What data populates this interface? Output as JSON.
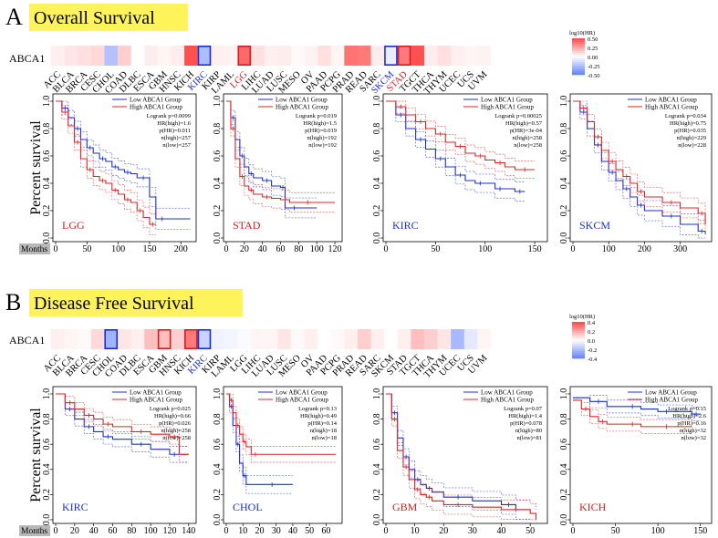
{
  "figure": {
    "panels": [
      {
        "letter": "A",
        "title": "Overall Survival",
        "gene": "ABCA1",
        "cancers": [
          "ACC",
          "BLCA",
          "BRCA",
          "CESC",
          "CHOL",
          "COAD",
          "DLBC",
          "ESCA",
          "GBM",
          "HNSC",
          "KICH",
          "KIRC",
          "KIRP",
          "LAML",
          "LGG",
          "LIHC",
          "LUAD",
          "LUSC",
          "MESO",
          "OV",
          "PAAD",
          "PCPG",
          "PRAD",
          "READ",
          "SARC",
          "SKCM",
          "STAD",
          "TGCT",
          "THCA",
          "THYM",
          "UCEC",
          "UCS",
          "UVM"
        ],
        "heat_values": [
          0.05,
          0.08,
          0.1,
          0.12,
          -0.28,
          0.15,
          0,
          0.06,
          0.03,
          0.06,
          0.55,
          -0.3,
          0.05,
          0.04,
          0.47,
          0.1,
          0.05,
          0.06,
          0.02,
          0.04,
          0.1,
          0.03,
          0.44,
          0.42,
          0.06,
          -0.08,
          0.42,
          0.55,
          0.06,
          0.1,
          0.05,
          0.03,
          0.04
        ],
        "boxes": [
          {
            "index": 11,
            "color": "#1b2fd6"
          },
          {
            "index": 14,
            "color": "#d02020"
          },
          {
            "index": 25,
            "color": "#1b2fd6"
          },
          {
            "index": 26,
            "color": "#d02020"
          }
        ],
        "colored_labels": [
          {
            "index": 11,
            "color": "#1b2fd6"
          },
          {
            "index": 14,
            "color": "#d02020"
          },
          {
            "index": 25,
            "color": "#1b2fd6"
          },
          {
            "index": 26,
            "color": "#d02020"
          }
        ],
        "colorbar": {
          "title": "log10(HR)",
          "ticks": [
            "0.50",
            "0.25",
            "0.00",
            "-0.25",
            "-0.50"
          ]
        },
        "ylabel": "Percent survival",
        "xaxis_label": "Months"
      },
      {
        "letter": "B",
        "title": "Disease Free Survival",
        "gene": "ABCA1",
        "cancers": [
          "ACC",
          "BLCA",
          "BRCA",
          "CESC",
          "CHOL",
          "COAD",
          "DLBC",
          "ESCA",
          "GBM",
          "HNSC",
          "KICH",
          "KIRC",
          "KIRP",
          "LAML",
          "LGG",
          "LIHC",
          "LUAD",
          "LUSC",
          "MESO",
          "OV",
          "PAAD",
          "PCPG",
          "PRAD",
          "READ",
          "SARC",
          "SKCM",
          "STAD",
          "TGCT",
          "THCA",
          "THYM",
          "UCEC",
          "UCS",
          "UVM"
        ],
        "heat_values": [
          0.05,
          0.03,
          0.02,
          0.12,
          -0.35,
          0.08,
          0.05,
          0.2,
          0.2,
          0.15,
          0.42,
          -0.2,
          -0.06,
          -0.04,
          -0.02,
          0.03,
          0.03,
          0.08,
          0.02,
          0.05,
          0.0,
          0.02,
          0.05,
          0.15,
          0.05,
          0.0,
          0.05,
          0.2,
          0.15,
          0.08,
          -0.32,
          -0.1,
          0.03
        ],
        "boxes": [
          {
            "index": 4,
            "color": "#1b2fd6"
          },
          {
            "index": 8,
            "color": "#d02020"
          },
          {
            "index": 10,
            "color": "#d02020"
          },
          {
            "index": 11,
            "color": "#1b2fd6"
          }
        ],
        "colored_labels": [
          {
            "index": 11,
            "color": "#1b2fd6"
          }
        ],
        "colorbar": {
          "title": "log10(HR)",
          "ticks": [
            "0.4",
            "0.2",
            "0.0",
            "-0.2",
            "-0.4"
          ]
        },
        "ylabel": "Percent survival",
        "xaxis_label": "Months"
      }
    ]
  },
  "chart_data": [
    {
      "type": "line",
      "panel": "A",
      "cancer": "LGG",
      "cancer_color": "#d02020",
      "xlim": [
        0,
        220
      ],
      "xticks": [
        0,
        50,
        100,
        150,
        200
      ],
      "ylim": [
        0,
        1
      ],
      "yticks": [
        "0.0",
        "0.2",
        "0.4",
        "0.6",
        "0.8",
        "1.0"
      ],
      "legend": [
        "Low ABCA1 Group",
        "High ABCA1 Group"
      ],
      "stats": [
        "Logrank p=0.0099",
        "HR(high)=1.6",
        "p(HR)=0.011",
        "n(high)=257",
        "n(low)=257"
      ],
      "series": [
        {
          "name": "Low ABCA1 Group",
          "x": [
            0,
            10,
            20,
            30,
            40,
            50,
            60,
            70,
            80,
            90,
            100,
            110,
            120,
            130,
            150,
            160,
            180,
            215
          ],
          "y": [
            1,
            0.95,
            0.88,
            0.8,
            0.72,
            0.66,
            0.62,
            0.58,
            0.56,
            0.52,
            0.5,
            0.48,
            0.47,
            0.44,
            0.3,
            0.14,
            0.14,
            0.14
          ]
        },
        {
          "name": "High ABCA1 Group",
          "x": [
            0,
            10,
            20,
            30,
            40,
            50,
            60,
            70,
            80,
            90,
            100,
            110,
            120,
            130,
            140,
            150,
            160
          ],
          "y": [
            1,
            0.92,
            0.82,
            0.7,
            0.58,
            0.5,
            0.45,
            0.42,
            0.4,
            0.35,
            0.32,
            0.28,
            0.26,
            0.2,
            0.15,
            0.1,
            0.1
          ]
        }
      ]
    },
    {
      "type": "line",
      "panel": "A",
      "cancer": "STAD",
      "cancer_color": "#d02020",
      "xlim": [
        0,
        125
      ],
      "xticks": [
        0,
        20,
        40,
        60,
        80,
        100,
        120
      ],
      "ylim": [
        0,
        1
      ],
      "yticks": [
        "0.0",
        "0.2",
        "0.4",
        "0.6",
        "0.8",
        "1.0"
      ],
      "legend": [
        "Low ABCA1 Group",
        "High ABCA1 Group"
      ],
      "stats": [
        "Logrank p=0.019",
        "HR(high)=1.5",
        "p(HR)=0.019",
        "n(high)=192",
        "n(low)=192"
      ],
      "series": [
        {
          "name": "Low ABCA1 Group",
          "x": [
            0,
            5,
            10,
            15,
            20,
            25,
            30,
            40,
            50,
            60,
            65,
            70,
            80,
            100
          ],
          "y": [
            1,
            0.88,
            0.72,
            0.6,
            0.52,
            0.47,
            0.44,
            0.42,
            0.38,
            0.37,
            0.22,
            0.22,
            0.22,
            0.22
          ]
        },
        {
          "name": "High ABCA1 Group",
          "x": [
            0,
            5,
            10,
            15,
            20,
            25,
            30,
            40,
            50,
            60,
            70,
            80,
            100,
            120
          ],
          "y": [
            1,
            0.8,
            0.58,
            0.45,
            0.38,
            0.35,
            0.32,
            0.3,
            0.29,
            0.28,
            0.26,
            0.26,
            0.26,
            0.26
          ]
        }
      ]
    },
    {
      "type": "line",
      "panel": "A",
      "cancer": "KIRC",
      "cancer_color": "#1b2fd6",
      "xlim": [
        0,
        160
      ],
      "xticks": [
        0,
        50,
        100,
        150
      ],
      "ylim": [
        0,
        1
      ],
      "yticks": [
        "0.0",
        "0.2",
        "0.4",
        "0.6",
        "0.8",
        "1.0"
      ],
      "legend": [
        "Low ABCA1 Group",
        "High ABCA1 Group"
      ],
      "stats": [
        "Logrank p=0.00025",
        "HR(high)=0.57",
        "p(HR)=3e-04",
        "n(high)=258",
        "n(low)=258"
      ],
      "series": [
        {
          "name": "Low ABCA1 Group",
          "x": [
            0,
            10,
            20,
            30,
            40,
            50,
            60,
            70,
            80,
            90,
            100,
            110,
            120,
            130,
            140
          ],
          "y": [
            1,
            0.9,
            0.8,
            0.72,
            0.65,
            0.58,
            0.52,
            0.46,
            0.42,
            0.4,
            0.4,
            0.36,
            0.36,
            0.34,
            0.34
          ]
        },
        {
          "name": "High ABCA1 Group",
          "x": [
            0,
            10,
            20,
            30,
            40,
            50,
            60,
            70,
            80,
            90,
            100,
            110,
            120,
            130,
            150
          ],
          "y": [
            1,
            0.96,
            0.9,
            0.85,
            0.8,
            0.76,
            0.7,
            0.67,
            0.62,
            0.6,
            0.57,
            0.55,
            0.52,
            0.5,
            0.5
          ]
        }
      ]
    },
    {
      "type": "line",
      "panel": "A",
      "cancer": "SKCM",
      "cancer_color": "#1b2fd6",
      "xlim": [
        0,
        380
      ],
      "xticks": [
        0,
        100,
        200,
        300
      ],
      "ylim": [
        0,
        1
      ],
      "yticks": [
        "0.0",
        "0.2",
        "0.4",
        "0.6",
        "0.8",
        "1.0"
      ],
      "legend": [
        "Low ABCA1 Group",
        "High ABCA1 Group"
      ],
      "stats": [
        "Logrank p=0.034",
        "HR(high)=0.75",
        "p(HR)=0.035",
        "n(high)=229",
        "n(low)=228"
      ],
      "series": [
        {
          "name": "Low ABCA1 Group",
          "x": [
            0,
            20,
            40,
            60,
            80,
            100,
            120,
            140,
            160,
            180,
            200,
            250,
            300,
            350,
            370
          ],
          "y": [
            1,
            0.92,
            0.8,
            0.68,
            0.56,
            0.48,
            0.42,
            0.36,
            0.3,
            0.24,
            0.2,
            0.16,
            0.1,
            0.05,
            0.03
          ]
        },
        {
          "name": "High ABCA1 Group",
          "x": [
            0,
            20,
            40,
            60,
            80,
            100,
            120,
            140,
            160,
            180,
            200,
            250,
            300,
            350,
            370
          ],
          "y": [
            1,
            0.95,
            0.85,
            0.74,
            0.64,
            0.56,
            0.5,
            0.45,
            0.4,
            0.34,
            0.3,
            0.26,
            0.22,
            0.18,
            0.1
          ]
        }
      ]
    },
    {
      "type": "line",
      "panel": "B",
      "cancer": "KIRC",
      "cancer_color": "#1b2fd6",
      "xlim": [
        0,
        145
      ],
      "xticks": [
        0,
        20,
        40,
        60,
        80,
        100,
        120,
        140
      ],
      "ylim": [
        0,
        1
      ],
      "yticks": [
        "0.0",
        "0.2",
        "0.4",
        "0.6",
        "0.8",
        "1.0"
      ],
      "legend": [
        "Low ABCA1 Group",
        "High ABCA1 Group"
      ],
      "stats": [
        "Logrank p=0.025",
        "HR(high)=0.66",
        "p(HR)=0.026",
        "n(high)=258",
        "n(low)=258"
      ],
      "series": [
        {
          "name": "Low ABCA1 Group",
          "x": [
            0,
            10,
            20,
            30,
            40,
            50,
            60,
            80,
            100,
            120,
            130,
            140
          ],
          "y": [
            1,
            0.88,
            0.8,
            0.74,
            0.7,
            0.66,
            0.64,
            0.6,
            0.56,
            0.52,
            0.52,
            0.52
          ]
        },
        {
          "name": "High ABCA1 Group",
          "x": [
            0,
            10,
            20,
            30,
            40,
            50,
            60,
            80,
            100,
            120,
            130,
            140
          ],
          "y": [
            1,
            0.93,
            0.88,
            0.83,
            0.8,
            0.76,
            0.74,
            0.7,
            0.68,
            0.66,
            0.52,
            0.52
          ]
        }
      ]
    },
    {
      "type": "line",
      "panel": "B",
      "cancer": "CHOL",
      "cancer_color": "#1b2fd6",
      "xlim": [
        0,
        68
      ],
      "xticks": [
        0,
        10,
        20,
        30,
        40,
        50,
        60
      ],
      "ylim": [
        0,
        1
      ],
      "yticks": [
        "0.0",
        "0.2",
        "0.4",
        "0.6",
        "0.8",
        "1.0"
      ],
      "legend": [
        "Low ABCA1 Group",
        "High ABCA1 Group"
      ],
      "stats": [
        "Logrank p=0.13",
        "HR(high)=0.49",
        "p(HR)=0.14",
        "n(high)=18",
        "n(low)=18"
      ],
      "series": [
        {
          "name": "Low ABCA1 Group",
          "x": [
            0,
            2,
            4,
            6,
            8,
            10,
            12,
            15,
            40
          ],
          "y": [
            1,
            0.9,
            0.75,
            0.6,
            0.45,
            0.35,
            0.28,
            0.28,
            0.28
          ]
        },
        {
          "name": "High ABCA1 Group",
          "x": [
            0,
            2,
            4,
            6,
            8,
            10,
            12,
            15,
            20,
            66
          ],
          "y": [
            1,
            0.95,
            0.85,
            0.75,
            0.68,
            0.62,
            0.58,
            0.52,
            0.52,
            0.52
          ]
        }
      ]
    },
    {
      "type": "line",
      "panel": "B",
      "cancer": "GBM",
      "cancer_color": "#d02020",
      "xlim": [
        0,
        55
      ],
      "xticks": [
        0,
        10,
        20,
        30,
        40,
        50
      ],
      "ylim": [
        0,
        1
      ],
      "yticks": [
        "0.0",
        "0.2",
        "0.4",
        "0.6",
        "0.8",
        "1.0"
      ],
      "legend": [
        "Low ABCA1 Group",
        "High ABCA1 Group"
      ],
      "stats": [
        "Logrank p=0.07",
        "HR(high)=1.4",
        "p(HR)=0.078",
        "n(high)=80",
        "n(low)=81"
      ],
      "series": [
        {
          "name": "Low ABCA1 Group",
          "x": [
            0,
            2,
            4,
            6,
            8,
            10,
            12,
            14,
            16,
            20,
            30,
            40,
            45,
            50
          ],
          "y": [
            1,
            0.85,
            0.65,
            0.5,
            0.4,
            0.32,
            0.28,
            0.25,
            0.22,
            0.18,
            0.15,
            0.12,
            0.08,
            0.08
          ]
        },
        {
          "name": "High ABCA1 Group",
          "x": [
            0,
            2,
            4,
            6,
            8,
            10,
            12,
            14,
            16,
            20,
            30,
            40,
            50,
            52
          ],
          "y": [
            1,
            0.8,
            0.55,
            0.42,
            0.32,
            0.24,
            0.2,
            0.18,
            0.15,
            0.12,
            0.1,
            0.08,
            0.05,
            0.0
          ]
        }
      ]
    },
    {
      "type": "line",
      "panel": "B",
      "cancer": "KICH",
      "cancer_color": "#d02020",
      "xlim": [
        0,
        160
      ],
      "xticks": [
        0,
        50,
        100,
        150
      ],
      "ylim": [
        0,
        1
      ],
      "yticks": [
        "0.0",
        "0.2",
        "0.4",
        "0.6",
        "0.8",
        "1.0"
      ],
      "legend": [
        "Low ABCA1 Group",
        "High ABCA1 Group"
      ],
      "stats": [
        "Logrank p=0.15",
        "HR(high)=2.6",
        "p(HR)=0.16",
        "n(high)=32",
        "n(low)=32"
      ],
      "series": [
        {
          "name": "Low ABCA1 Group",
          "x": [
            0,
            20,
            40,
            60,
            80,
            100,
            120,
            140,
            150
          ],
          "y": [
            0.97,
            0.94,
            0.9,
            0.9,
            0.88,
            0.86,
            0.86,
            0.84,
            0.84
          ]
        },
        {
          "name": "High ABCA1 Group",
          "x": [
            0,
            10,
            20,
            30,
            40,
            60,
            80,
            100,
            120,
            140
          ],
          "y": [
            0.95,
            0.88,
            0.82,
            0.78,
            0.76,
            0.76,
            0.74,
            0.74,
            0.74,
            0.74
          ]
        }
      ]
    }
  ]
}
